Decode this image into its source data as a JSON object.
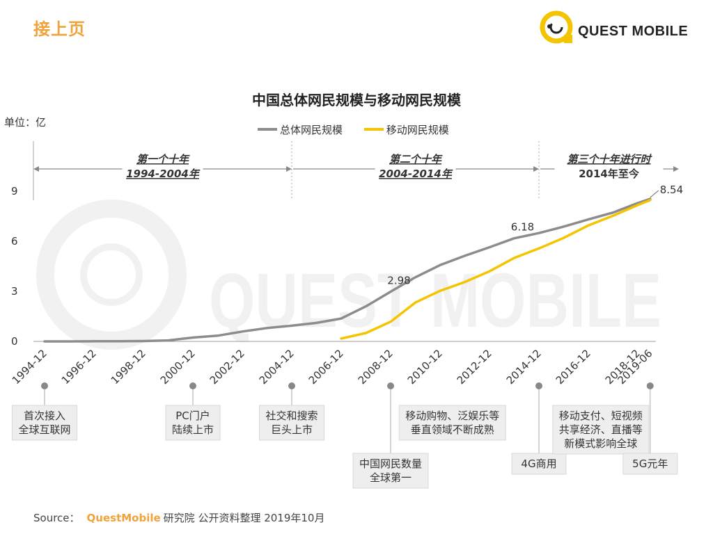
{
  "header": {
    "title": "接上页"
  },
  "logo": {
    "text": "QUEST MOBILE"
  },
  "unit_label": "单位：亿",
  "source": {
    "prefix": "Source：",
    "brand": "QuestMobile",
    "text": "研究院 公开资料整理 2019年10月"
  },
  "eras": [
    {
      "line1": "第一个十年",
      "line2": "1994-2004年",
      "style": "italic"
    },
    {
      "line1": "第二个十年",
      "line2": "2004-2014年",
      "style": "italic"
    },
    {
      "line1": "第三个十年进行时",
      "line2": "2014年至今",
      "style": "mixed"
    }
  ],
  "milestones": [
    {
      "date": "1994-12",
      "lines": [
        "首次接入",
        "全球互联网"
      ],
      "position": "high"
    },
    {
      "date": "2000-12",
      "lines": [
        "PC门户",
        "陆续上市"
      ],
      "position": "high"
    },
    {
      "date": "2004-12",
      "lines": [
        "社交和搜索",
        "巨头上市"
      ],
      "position": "high"
    },
    {
      "date": "2008-12",
      "lines": [
        "中国网民数量",
        "全球第一"
      ],
      "position": "low"
    },
    {
      "date": "2011-06",
      "lines": [
        "移动购物、泛娱乐等",
        "垂直领域不断成熟"
      ],
      "position": "high",
      "no_marker": true
    },
    {
      "date": "2014-12",
      "lines": [
        "4G商用"
      ],
      "position": "low"
    },
    {
      "date": "2017-06",
      "lines": [
        "移动支付、短视频",
        "共享经济、直播等",
        "新模式影响全球"
      ],
      "position": "high",
      "no_marker": true
    },
    {
      "date": "2019-06",
      "lines": [
        "5G元年"
      ],
      "position": "low"
    }
  ],
  "chart_data": {
    "type": "line",
    "title": "中国总体网民规模与移动网民规模",
    "ylabel": "单位：亿",
    "ylim": [
      0,
      9
    ],
    "yticks": [
      0,
      3,
      6,
      9
    ],
    "xticks": [
      "1994-12",
      "1996-12",
      "1998-12",
      "2000-12",
      "2002-12",
      "2004-12",
      "2006-12",
      "2008-12",
      "2010-12",
      "2012-12",
      "2014-12",
      "2016-12",
      "2018-12",
      "2019-06"
    ],
    "legend_placement": "top-center",
    "grid": false,
    "series": [
      {
        "name": "总体网民规模",
        "color": "#8c8c8c",
        "points": [
          {
            "x": "1994-12",
            "y": 0.0
          },
          {
            "x": "1995-12",
            "y": 0.0
          },
          {
            "x": "1996-12",
            "y": 0.01
          },
          {
            "x": "1997-12",
            "y": 0.01
          },
          {
            "x": "1998-12",
            "y": 0.02
          },
          {
            "x": "1999-12",
            "y": 0.06
          },
          {
            "x": "2000-12",
            "y": 0.23
          },
          {
            "x": "2001-12",
            "y": 0.34
          },
          {
            "x": "2002-12",
            "y": 0.59
          },
          {
            "x": "2003-12",
            "y": 0.8
          },
          {
            "x": "2004-12",
            "y": 0.94
          },
          {
            "x": "2005-12",
            "y": 1.11
          },
          {
            "x": "2006-12",
            "y": 1.37
          },
          {
            "x": "2007-12",
            "y": 2.1
          },
          {
            "x": "2008-12",
            "y": 2.98
          },
          {
            "x": "2009-12",
            "y": 3.84
          },
          {
            "x": "2010-12",
            "y": 4.57
          },
          {
            "x": "2011-12",
            "y": 5.13
          },
          {
            "x": "2012-12",
            "y": 5.64
          },
          {
            "x": "2013-12",
            "y": 6.18
          },
          {
            "x": "2014-12",
            "y": 6.49
          },
          {
            "x": "2015-12",
            "y": 6.88
          },
          {
            "x": "2016-12",
            "y": 7.31
          },
          {
            "x": "2017-12",
            "y": 7.72
          },
          {
            "x": "2018-12",
            "y": 8.29
          },
          {
            "x": "2019-06",
            "y": 8.54
          }
        ],
        "labels": [
          {
            "x": "2008-12",
            "text": "2.98"
          },
          {
            "x": "2013-12",
            "text": "6.18"
          },
          {
            "x": "2019-06",
            "text": "8.54"
          }
        ]
      },
      {
        "name": "移动网民规模",
        "color": "#f5c400",
        "points": [
          {
            "x": "2006-12",
            "y": 0.17
          },
          {
            "x": "2007-12",
            "y": 0.5
          },
          {
            "x": "2008-12",
            "y": 1.18
          },
          {
            "x": "2009-12",
            "y": 2.33
          },
          {
            "x": "2010-12",
            "y": 3.03
          },
          {
            "x": "2011-12",
            "y": 3.56
          },
          {
            "x": "2012-12",
            "y": 4.2
          },
          {
            "x": "2013-12",
            "y": 5.0
          },
          {
            "x": "2014-12",
            "y": 5.57
          },
          {
            "x": "2015-12",
            "y": 6.2
          },
          {
            "x": "2016-12",
            "y": 6.95
          },
          {
            "x": "2017-12",
            "y": 7.53
          },
          {
            "x": "2018-12",
            "y": 8.17
          },
          {
            "x": "2019-06",
            "y": 8.47
          }
        ]
      }
    ]
  }
}
